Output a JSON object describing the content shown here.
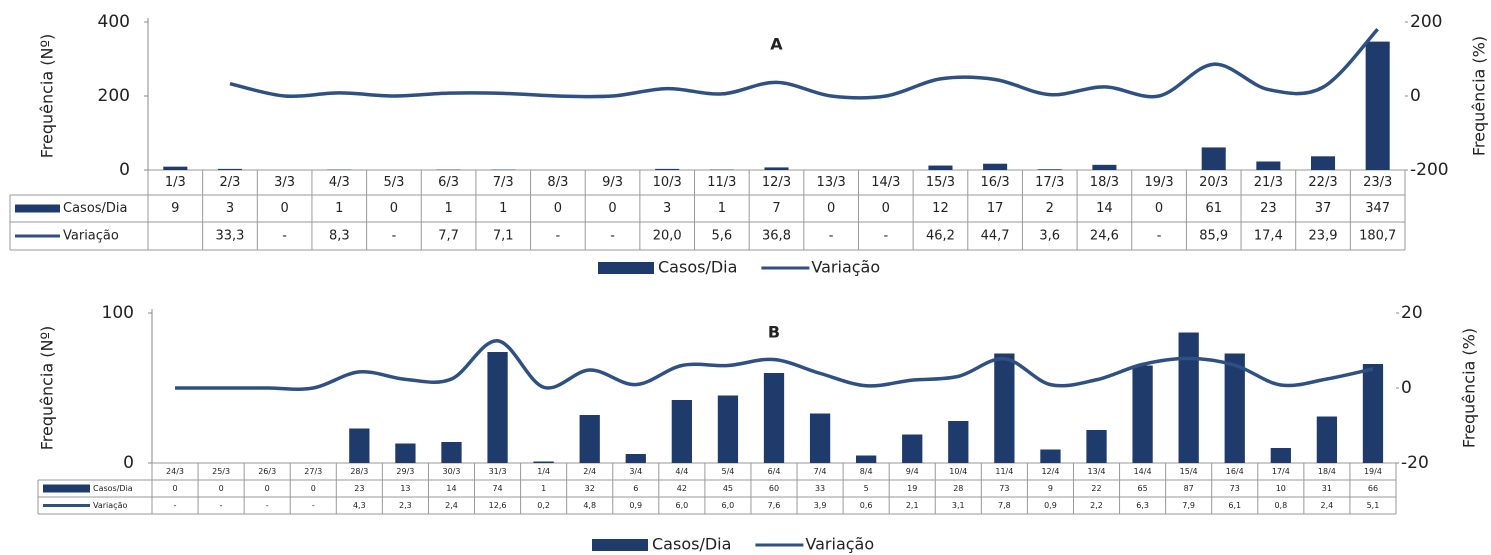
{
  "chart_data": [
    {
      "type": "bar-line",
      "title": "A",
      "categories": [
        "1/3",
        "2/3",
        "3/3",
        "4/3",
        "5/3",
        "6/3",
        "7/3",
        "8/3",
        "9/3",
        "10/3",
        "11/3",
        "12/3",
        "13/3",
        "14/3",
        "15/3",
        "16/3",
        "17/3",
        "18/3",
        "19/3",
        "20/3",
        "21/3",
        "22/3",
        "23/3"
      ],
      "series": [
        {
          "name": "Casos/Dia",
          "type": "bar",
          "color": "#1f3b6b",
          "values": [
            9,
            3,
            0,
            1,
            0,
            1,
            1,
            0,
            0,
            3,
            1,
            7,
            0,
            0,
            12,
            17,
            2,
            14,
            0,
            61,
            23,
            37,
            347
          ]
        },
        {
          "name": "Variação",
          "type": "line",
          "axis": "y2",
          "color": "#2e5083",
          "values": [
            null,
            33.3,
            0,
            8.3,
            0,
            7.7,
            7.1,
            0,
            0,
            20.0,
            5.6,
            36.8,
            0,
            0,
            46.2,
            44.7,
            3.6,
            24.6,
            0,
            85.9,
            17.4,
            23.9,
            180.7
          ],
          "value_labels": [
            null,
            "33,3",
            "-",
            "8,3",
            "-",
            "7,7",
            "7,1",
            "-",
            "-",
            "20,0",
            "5,6",
            "36,8",
            "-",
            "-",
            "46,2",
            "44,7",
            "3,6",
            "24,6",
            "-",
            "85,9",
            "17,4",
            "23,9",
            "180,7"
          ]
        }
      ],
      "ylabel": "Frequência (Nº)",
      "y2label": "Frequência (%)",
      "ylim": [
        0,
        400
      ],
      "yticks": [
        0,
        200,
        400
      ],
      "y2lim": [
        -200,
        200
      ],
      "y2ticks": [
        -200,
        0,
        200
      ],
      "legend": "bottom"
    },
    {
      "type": "bar-line",
      "title": "B",
      "categories": [
        "24/3",
        "25/3",
        "26/3",
        "27/3",
        "28/3",
        "29/3",
        "30/3",
        "31/3",
        "1/4",
        "2/4",
        "3/4",
        "4/4",
        "5/4",
        "6/4",
        "7/4",
        "8/4",
        "9/4",
        "10/4",
        "11/4",
        "12/4",
        "13/4",
        "14/4",
        "15/4",
        "16/4",
        "17/4",
        "18/4",
        "19/4"
      ],
      "series": [
        {
          "name": "Casos/Dia",
          "type": "bar",
          "color": "#1f3b6b",
          "values": [
            0,
            0,
            0,
            0,
            23,
            13,
            14,
            74,
            1,
            32,
            6,
            42,
            45,
            60,
            33,
            5,
            19,
            28,
            73,
            9,
            22,
            65,
            87,
            73,
            10,
            31,
            66
          ]
        },
        {
          "name": "Variação",
          "type": "line",
          "axis": "y2",
          "color": "#2e5083",
          "values": [
            0,
            0,
            0,
            0,
            4.3,
            2.3,
            2.4,
            12.6,
            0.2,
            4.8,
            0.9,
            6.0,
            6.0,
            7.6,
            3.9,
            0.6,
            2.1,
            3.1,
            7.8,
            0.9,
            2.2,
            6.3,
            7.9,
            6.1,
            0.8,
            2.4,
            5.1
          ],
          "value_labels": [
            "-",
            "-",
            "-",
            "-",
            "4,3",
            "2,3",
            "2,4",
            "12,6",
            "0,2",
            "4,8",
            "0,9",
            "6,0",
            "6,0",
            "7,6",
            "3,9",
            "0,6",
            "2,1",
            "3,1",
            "7,8",
            "0,9",
            "2,2",
            "6,3",
            "7,9",
            "6,1",
            "0,8",
            "2,4",
            "5,1"
          ]
        }
      ],
      "ylabel": "Frequência (Nº)",
      "y2label": "Frequência (%)",
      "ylim": [
        0,
        100
      ],
      "yticks": [
        0,
        100
      ],
      "y2lim": [
        -20,
        20
      ],
      "y2ticks": [
        -20,
        0,
        20
      ],
      "legend": "bottom"
    }
  ]
}
